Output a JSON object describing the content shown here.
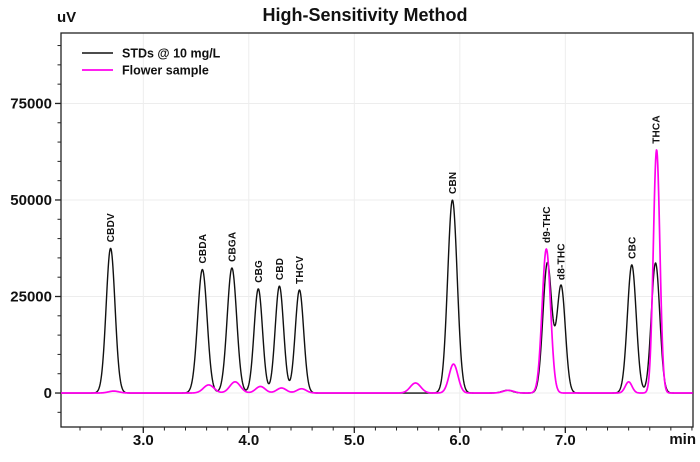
{
  "chart_data": {
    "type": "line",
    "title": "High-Sensitivity Method",
    "xlabel": "min",
    "ylabel": "uV",
    "x_range": [
      2.22,
      8.21
    ],
    "y_range": [
      -8800,
      93250
    ],
    "x_major_ticks": [
      {
        "value": 3.0,
        "label": "3.0"
      },
      {
        "value": 4.0,
        "label": "4.0"
      },
      {
        "value": 5.0,
        "label": "5.0"
      },
      {
        "value": 6.0,
        "label": "6.0"
      },
      {
        "value": 7.0,
        "label": "7.0"
      }
    ],
    "x_minor_step": 0.2,
    "y_major_ticks": [
      {
        "value": 0,
        "label": "0"
      },
      {
        "value": 25000,
        "label": "25000"
      },
      {
        "value": 50000,
        "label": "50000"
      },
      {
        "value": 75000,
        "label": "75000"
      }
    ],
    "y_minor_step": 5000,
    "grid": "faint gridlines at major ticks",
    "legend_position": "top-left-inside",
    "series": [
      {
        "name": "STDs @ 10 mg/L",
        "color": "#111111",
        "peaks": [
          {
            "analyte": "CBDV",
            "time_min": 2.69,
            "height_uv": 37500,
            "sigma_min": 0.042
          },
          {
            "analyte": "CBDA",
            "time_min": 3.56,
            "height_uv": 32000,
            "sigma_min": 0.045
          },
          {
            "analyte": "CBGA",
            "time_min": 3.84,
            "height_uv": 32400,
            "sigma_min": 0.045
          },
          {
            "analyte": "CBG",
            "time_min": 4.09,
            "height_uv": 27000,
            "sigma_min": 0.04
          },
          {
            "analyte": "CBD",
            "time_min": 4.29,
            "height_uv": 27700,
            "sigma_min": 0.04
          },
          {
            "analyte": "THCV",
            "time_min": 4.48,
            "height_uv": 26700,
            "sigma_min": 0.04
          },
          {
            "analyte": "CBN",
            "time_min": 5.93,
            "height_uv": 50000,
            "sigma_min": 0.045
          },
          {
            "analyte": "minor",
            "time_min": 6.45,
            "height_uv": 700,
            "sigma_min": 0.05
          },
          {
            "analyte": "d9-THC",
            "time_min": 6.83,
            "height_uv": 33700,
            "sigma_min": 0.042
          },
          {
            "analyte": "d8-THC",
            "time_min": 6.96,
            "height_uv": 27700,
            "sigma_min": 0.04
          },
          {
            "analyte": "CBC",
            "time_min": 7.63,
            "height_uv": 33200,
            "sigma_min": 0.042
          },
          {
            "analyte": "THCA",
            "time_min": 7.855,
            "height_uv": 33700,
            "sigma_min": 0.04
          }
        ]
      },
      {
        "name": "Flower sample",
        "color": "#ff00ee",
        "peaks": [
          {
            "analyte": "CBDV",
            "time_min": 2.72,
            "height_uv": 500,
            "sigma_min": 0.05
          },
          {
            "analyte": "CBDA",
            "time_min": 3.62,
            "height_uv": 2100,
            "sigma_min": 0.05
          },
          {
            "analyte": "CBGA",
            "time_min": 3.87,
            "height_uv": 2900,
            "sigma_min": 0.05
          },
          {
            "analyte": "CBG",
            "time_min": 4.11,
            "height_uv": 1700,
            "sigma_min": 0.045
          },
          {
            "analyte": "CBD",
            "time_min": 4.31,
            "height_uv": 1300,
            "sigma_min": 0.045
          },
          {
            "analyte": "THCV",
            "time_min": 4.5,
            "height_uv": 1100,
            "sigma_min": 0.045
          },
          {
            "analyte": "minor",
            "time_min": 5.58,
            "height_uv": 2600,
            "sigma_min": 0.05
          },
          {
            "analyte": "CBN",
            "time_min": 5.94,
            "height_uv": 7500,
            "sigma_min": 0.042
          },
          {
            "analyte": "minor",
            "time_min": 6.46,
            "height_uv": 700,
            "sigma_min": 0.05
          },
          {
            "analyte": "d9-THC",
            "time_min": 6.82,
            "height_uv": 37300,
            "sigma_min": 0.04
          },
          {
            "analyte": "CBC",
            "time_min": 7.6,
            "height_uv": 2900,
            "sigma_min": 0.032
          },
          {
            "analyte": "THCA",
            "time_min": 7.865,
            "height_uv": 63000,
            "sigma_min": 0.031
          }
        ]
      }
    ],
    "peak_labels": [
      {
        "text": "CBDV",
        "time_min": 2.69,
        "above_uv": 37500
      },
      {
        "text": "CBDA",
        "time_min": 3.56,
        "above_uv": 32000
      },
      {
        "text": "CBGA",
        "time_min": 3.84,
        "above_uv": 32400
      },
      {
        "text": "CBG",
        "time_min": 4.09,
        "above_uv": 27000
      },
      {
        "text": "CBD",
        "time_min": 4.29,
        "above_uv": 27700
      },
      {
        "text": "THCV",
        "time_min": 4.48,
        "above_uv": 26700
      },
      {
        "text": "CBN",
        "time_min": 5.93,
        "above_uv": 50000
      },
      {
        "text": "d9-THC",
        "time_min": 6.82,
        "above_uv": 37300
      },
      {
        "text": "d8-THC",
        "time_min": 6.96,
        "above_uv": 27700
      },
      {
        "text": "CBC",
        "time_min": 7.63,
        "above_uv": 33200
      },
      {
        "text": "THCA",
        "time_min": 7.86,
        "above_uv": 63000
      }
    ]
  }
}
